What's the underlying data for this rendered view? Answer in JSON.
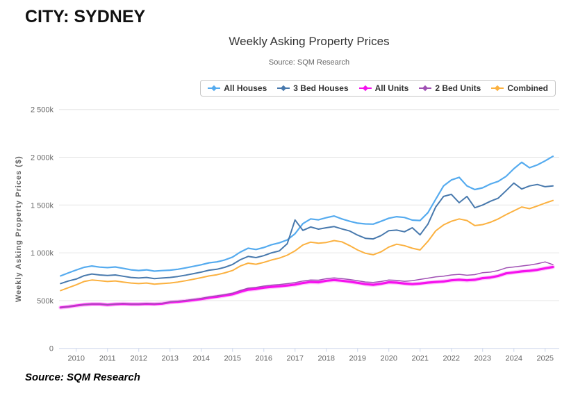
{
  "page": {
    "header": "CITY: SYDNEY",
    "footer": "Source: SQM Research"
  },
  "colors": {
    "grid": "#e6e6e6",
    "axis": "#ccd6eb",
    "tick_label": "#666666",
    "title": "#333333",
    "subtitle": "#666666"
  },
  "chart_data": {
    "type": "line",
    "title": "Weekly Asking Property Prices",
    "subtitle": "Source: SQM Research",
    "ylabel": "Weekly Asking Property Prices ($)",
    "y_unit": "thousands of dollars",
    "ylim": [
      0,
      2500
    ],
    "grid": "horizontal",
    "legend_position": "top-right",
    "y_ticks": [
      {
        "value": 0,
        "label": "0"
      },
      {
        "value": 500,
        "label": "500k"
      },
      {
        "value": 1000,
        "label": "1 000k"
      },
      {
        "value": 1500,
        "label": "1 500k"
      },
      {
        "value": 2000,
        "label": "2 000k"
      },
      {
        "value": 2500,
        "label": "2 500k"
      }
    ],
    "x_ticks": [
      2010,
      2011,
      2012,
      2013,
      2014,
      2015,
      2016,
      2017,
      2018,
      2019,
      2020,
      2021,
      2022,
      2023,
      2024,
      2025
    ],
    "xlim": [
      2009.45,
      2025.45
    ],
    "x_start": 2009.5,
    "x_step": 0.25,
    "series": [
      {
        "name": "All Houses",
        "color": "#55abef",
        "width": 2.2,
        "halo": false,
        "values": [
          758,
          790,
          820,
          848,
          862,
          850,
          845,
          852,
          838,
          822,
          815,
          822,
          808,
          814,
          818,
          828,
          842,
          858,
          875,
          895,
          905,
          925,
          955,
          1008,
          1048,
          1035,
          1055,
          1085,
          1105,
          1135,
          1200,
          1305,
          1355,
          1345,
          1368,
          1385,
          1355,
          1330,
          1310,
          1302,
          1300,
          1330,
          1362,
          1378,
          1370,
          1342,
          1338,
          1420,
          1560,
          1700,
          1762,
          1790,
          1700,
          1662,
          1680,
          1720,
          1748,
          1800,
          1880,
          1948,
          1890,
          1920,
          1962,
          2010
        ]
      },
      {
        "name": "3 Bed Houses",
        "color": "#4879ad",
        "width": 2,
        "halo": false,
        "values": [
          678,
          705,
          725,
          760,
          778,
          768,
          762,
          768,
          755,
          742,
          736,
          742,
          730,
          736,
          742,
          752,
          766,
          782,
          798,
          818,
          828,
          848,
          878,
          928,
          962,
          950,
          970,
          1000,
          1020,
          1095,
          1344,
          1235,
          1270,
          1248,
          1262,
          1275,
          1250,
          1228,
          1185,
          1152,
          1145,
          1180,
          1232,
          1238,
          1220,
          1262,
          1188,
          1300,
          1480,
          1590,
          1612,
          1525,
          1590,
          1472,
          1500,
          1540,
          1572,
          1650,
          1730,
          1668,
          1700,
          1715,
          1692,
          1700
        ]
      },
      {
        "name": "All Units",
        "color": "#f511ee",
        "width": 3.2,
        "halo": true,
        "values": [
          428,
          436,
          448,
          458,
          463,
          463,
          456,
          462,
          466,
          462,
          462,
          466,
          463,
          468,
          482,
          488,
          496,
          506,
          516,
          530,
          540,
          552,
          566,
          592,
          615,
          622,
          635,
          644,
          650,
          658,
          668,
          684,
          695,
          692,
          708,
          715,
          708,
          698,
          686,
          672,
          666,
          676,
          692,
          688,
          678,
          672,
          678,
          688,
          695,
          700,
          712,
          718,
          712,
          718,
          735,
          742,
          758,
          785,
          795,
          805,
          812,
          822,
          838,
          852
        ]
      },
      {
        "name": "2 Bed Units",
        "color": "#a050b4",
        "width": 1.5,
        "halo": false,
        "values": [
          428,
          436,
          448,
          458,
          464,
          464,
          457,
          463,
          467,
          463,
          463,
          467,
          465,
          471,
          486,
          493,
          502,
          513,
          524,
          539,
          550,
          563,
          578,
          606,
          630,
          638,
          652,
          662,
          668,
          677,
          688,
          705,
          716,
          714,
          730,
          738,
          730,
          720,
          708,
          695,
          690,
          700,
          716,
          712,
          702,
          708,
          722,
          735,
          748,
          755,
          768,
          775,
          765,
          772,
          792,
          798,
          815,
          842,
          852,
          862,
          872,
          885,
          905,
          876
        ]
      },
      {
        "name": "Combined",
        "color": "#fbb140",
        "width": 2,
        "halo": false,
        "values": [
          605,
          635,
          665,
          700,
          715,
          708,
          700,
          706,
          694,
          684,
          678,
          684,
          672,
          678,
          684,
          694,
          708,
          724,
          740,
          758,
          770,
          790,
          815,
          862,
          892,
          880,
          900,
          925,
          945,
          975,
          1020,
          1082,
          1112,
          1100,
          1108,
          1128,
          1115,
          1075,
          1030,
          995,
          980,
          1010,
          1060,
          1090,
          1075,
          1048,
          1030,
          1120,
          1230,
          1292,
          1330,
          1355,
          1338,
          1285,
          1295,
          1320,
          1355,
          1400,
          1440,
          1480,
          1462,
          1490,
          1520,
          1548
        ]
      }
    ]
  }
}
